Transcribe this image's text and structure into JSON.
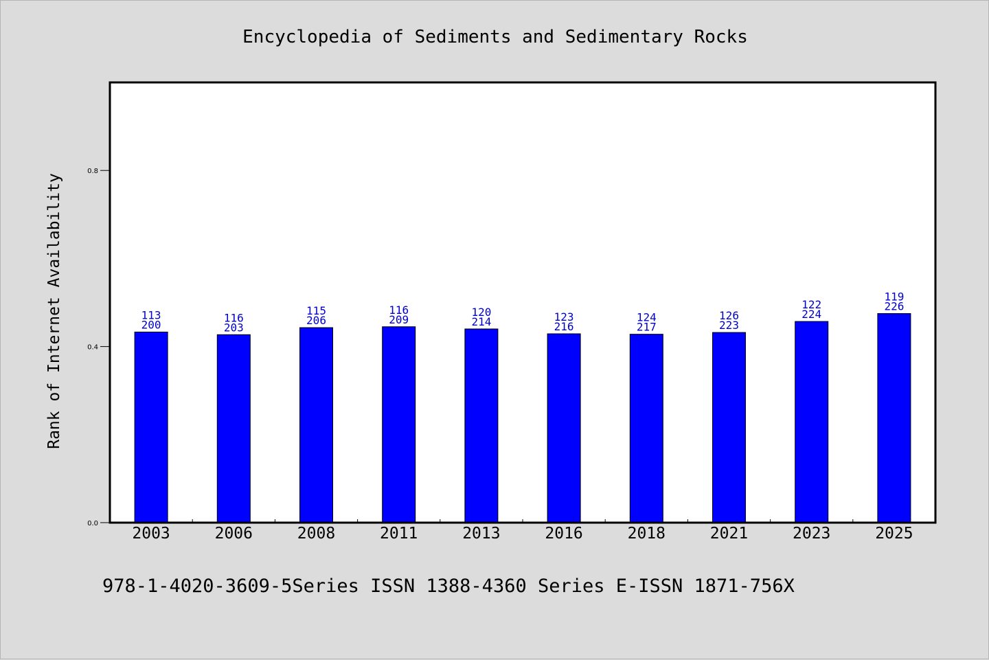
{
  "colors": {
    "background": "#dcdcdc",
    "plot_background": "#ffffff",
    "bar": "#0000ff",
    "bar_label": "#0000cc"
  },
  "footer_text": "978-1-4020-3609-5Series ISSN 1388-4360 Series E-ISSN 1871-756X",
  "chart_data": {
    "type": "bar",
    "title": "Encyclopedia of Sediments and Sedimentary Rocks",
    "xlabel": "",
    "ylabel": "Rank of Internet Availability",
    "categories": [
      "2003",
      "2006",
      "2008",
      "2011",
      "2013",
      "2016",
      "2018",
      "2021",
      "2023",
      "2025"
    ],
    "values": [
      0.433,
      0.427,
      0.443,
      0.445,
      0.44,
      0.429,
      0.428,
      0.432,
      0.457,
      0.475
    ],
    "label_top": [
      "113",
      "116",
      "115",
      "116",
      "120",
      "123",
      "124",
      "126",
      "122",
      "119"
    ],
    "label_bottom": [
      "200",
      "203",
      "206",
      "209",
      "214",
      "216",
      "217",
      "223",
      "224",
      "226"
    ],
    "ylim": [
      0,
      1.0
    ],
    "yticks": [
      0.0,
      0.4,
      0.8
    ],
    "ytick_labels": [
      "0.0",
      "0.4",
      "0.8"
    ],
    "grid": false,
    "legend": "none"
  }
}
